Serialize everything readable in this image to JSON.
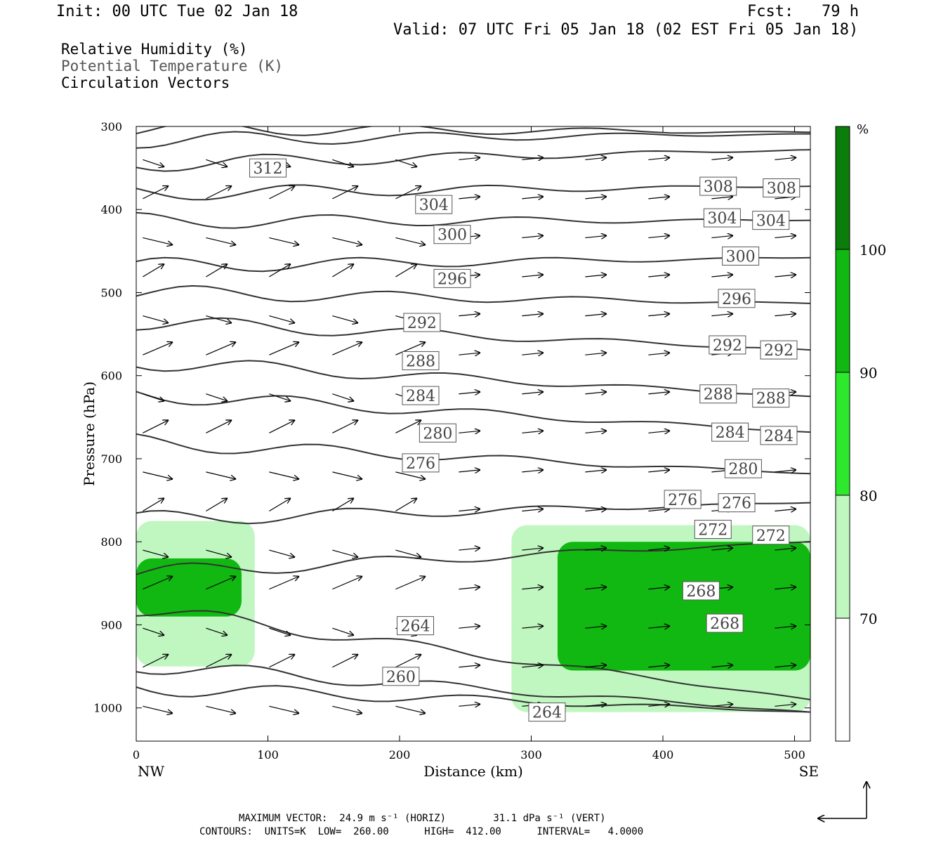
{
  "header": {
    "init": "Init: 00 UTC Tue 02 Jan 18",
    "fcst": "Fcst:   79 h",
    "valid": "Valid: 07 UTC Fri 05 Jan 18 (02 EST Fri 05 Jan 18)"
  },
  "fields": [
    {
      "label": "Relative Humidity (%)",
      "color": "#000000"
    },
    {
      "label": "Potential Temperature (K)",
      "color": "#555555"
    },
    {
      "label": "Circulation Vectors",
      "color": "#000000"
    }
  ],
  "footer": {
    "max_vector": "MAXIMUM VECTOR:  24.9 m s⁻¹ (HORIZ)        31.1 dPa s⁻¹ (VERT)",
    "contours": "CONTOURS:  UNITS=K  LOW=  260.00      HIGH=  412.00      INTERVAL=   4.0000"
  },
  "chart_data": {
    "type": "heatmap",
    "title": "",
    "xlabel": "Distance (km)",
    "ylabel": "Pressure (hPa)",
    "xlim": [
      0,
      512
    ],
    "ylim": [
      1040,
      300
    ],
    "x_ticks": [
      0,
      100,
      200,
      300,
      400,
      500
    ],
    "y_ticks": [
      300,
      400,
      500,
      600,
      700,
      800,
      900,
      1000
    ],
    "x_end_labels": {
      "left": "NW",
      "right": "SE"
    },
    "colorbar": {
      "unit": "%",
      "levels": [
        70,
        80,
        90,
        100
      ],
      "colors": [
        "#ffffff",
        "#c0f7c0",
        "#2ee82e",
        "#11b811",
        "#0a7d0a"
      ]
    },
    "theta_contour_labels": [
      {
        "value": "312",
        "x": 100,
        "p": 350
      },
      {
        "value": "308",
        "x": 442,
        "p": 372
      },
      {
        "value": "308",
        "x": 490,
        "p": 374
      },
      {
        "value": "304",
        "x": 226,
        "p": 394
      },
      {
        "value": "304",
        "x": 445,
        "p": 410
      },
      {
        "value": "304",
        "x": 482,
        "p": 413
      },
      {
        "value": "300",
        "x": 240,
        "p": 430
      },
      {
        "value": "300",
        "x": 459,
        "p": 456
      },
      {
        "value": "296",
        "x": 240,
        "p": 483
      },
      {
        "value": "296",
        "x": 456,
        "p": 507
      },
      {
        "value": "292",
        "x": 217,
        "p": 536
      },
      {
        "value": "292",
        "x": 449,
        "p": 563
      },
      {
        "value": "292",
        "x": 488,
        "p": 569
      },
      {
        "value": "288",
        "x": 216,
        "p": 582
      },
      {
        "value": "288",
        "x": 442,
        "p": 622
      },
      {
        "value": "288",
        "x": 482,
        "p": 627
      },
      {
        "value": "284",
        "x": 216,
        "p": 624
      },
      {
        "value": "284",
        "x": 451,
        "p": 668
      },
      {
        "value": "284",
        "x": 488,
        "p": 672
      },
      {
        "value": "280",
        "x": 229,
        "p": 669
      },
      {
        "value": "280",
        "x": 461,
        "p": 712
      },
      {
        "value": "276",
        "x": 216,
        "p": 705
      },
      {
        "value": "276",
        "x": 415,
        "p": 749
      },
      {
        "value": "276",
        "x": 456,
        "p": 753
      },
      {
        "value": "272",
        "x": 438,
        "p": 785
      },
      {
        "value": "272",
        "x": 482,
        "p": 792
      },
      {
        "value": "268",
        "x": 429,
        "p": 859
      },
      {
        "value": "268",
        "x": 447,
        "p": 898
      },
      {
        "value": "264",
        "x": 212,
        "p": 901
      },
      {
        "value": "264",
        "x": 312,
        "p": 1005
      },
      {
        "value": "260",
        "x": 201,
        "p": 962
      }
    ],
    "theta_levels": [
      260,
      264,
      268,
      272,
      276,
      280,
      284,
      288,
      292,
      296,
      300,
      304,
      308,
      312,
      316,
      320
    ],
    "theta_pressure_left": [
      975,
      948,
      880,
      838,
      773,
      680,
      622,
      583,
      535,
      500,
      468,
      414,
      380,
      345,
      316,
      302
    ],
    "theta_pressure_right": [
      1005,
      1005,
      990,
      800,
      753,
      718,
      668,
      625,
      569,
      513,
      458,
      413,
      372,
      328,
      309,
      307
    ],
    "rh_regions": [
      {
        "level": "70",
        "x": [
          0,
          90
        ],
        "p": [
          775,
          950
        ]
      },
      {
        "level": "90",
        "x": [
          0,
          80
        ],
        "p": [
          820,
          890
        ]
      },
      {
        "level": "70",
        "x": [
          285,
          512
        ],
        "p": [
          780,
          1005
        ]
      },
      {
        "level": "90",
        "x": [
          320,
          512
        ],
        "p": [
          800,
          955
        ]
      }
    ]
  }
}
